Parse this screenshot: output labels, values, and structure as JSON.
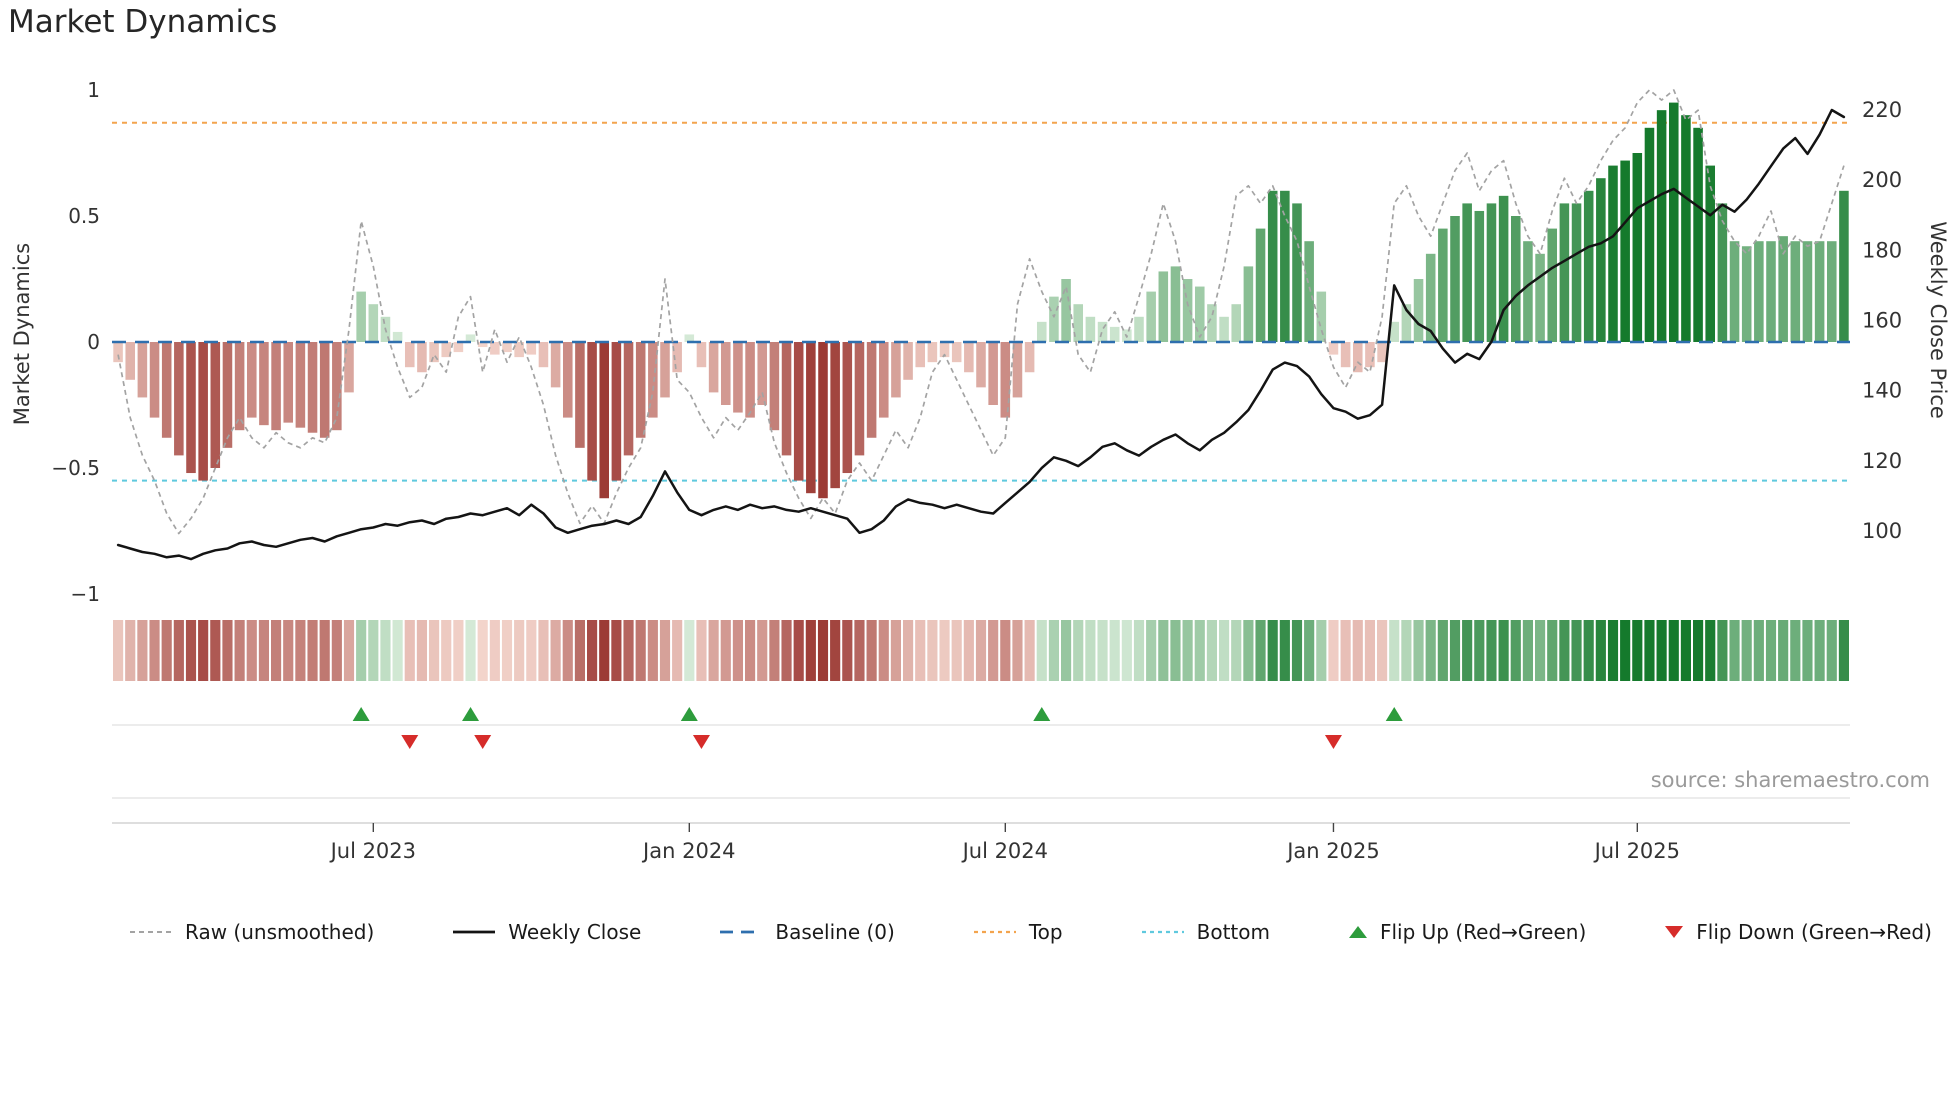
{
  "title": "Market Dynamics",
  "source": "source: sharemaestro.com",
  "axes": {
    "left_label": "Market Dynamics",
    "right_label": "Weekly Close Price"
  },
  "legend": {
    "items": [
      {
        "id": "raw",
        "label": "Raw (unsmoothed)"
      },
      {
        "id": "close",
        "label": "Weekly Close"
      },
      {
        "id": "baseline",
        "label": "Baseline (0)"
      },
      {
        "id": "top",
        "label": "Top"
      },
      {
        "id": "bottom",
        "label": "Bottom"
      },
      {
        "id": "flip-up",
        "label": "Flip Up (Red→Green)"
      },
      {
        "id": "flip-down",
        "label": "Flip Down (Green→Red)"
      }
    ]
  },
  "chart_data": {
    "type": "bar",
    "title": "Market Dynamics",
    "n_weeks": 143,
    "left_axis": {
      "label": "Market Dynamics",
      "ticks": [
        "1",
        "0.5",
        "0",
        "−0.5",
        "−1"
      ],
      "tick_values": [
        1,
        0.5,
        0,
        -0.5,
        -1
      ],
      "range": [
        -1.05,
        1.05
      ]
    },
    "right_axis": {
      "label": "Weekly Close Price",
      "ticks": [
        "220",
        "200",
        "180",
        "160",
        "140",
        "120",
        "100"
      ],
      "tick_values": [
        220,
        200,
        180,
        160,
        140,
        120,
        100
      ],
      "range": [
        88,
        228
      ]
    },
    "x_ticks": [
      {
        "label": "Jul 2023",
        "week": 21
      },
      {
        "label": "Jan 2024",
        "week": 47
      },
      {
        "label": "Jul 2024",
        "week": 73
      },
      {
        "label": "Jan 2025",
        "week": 100
      },
      {
        "label": "Jul 2025",
        "week": 125
      }
    ],
    "reference_lines": [
      {
        "name": "Baseline (0)",
        "value": 0,
        "color": "#2e6fae",
        "style": "dashed-long"
      },
      {
        "name": "Top",
        "value": 0.87,
        "color": "#f3a44e",
        "style": "dashed"
      },
      {
        "name": "Bottom",
        "value": -0.55,
        "color": "#5fc9de",
        "style": "dashed"
      }
    ],
    "flip_markers": {
      "up_weeks": [
        20,
        29,
        47,
        76,
        105
      ],
      "down_weeks": [
        24,
        30,
        48,
        100
      ]
    },
    "colors": {
      "raw": "#a3a3a3",
      "close": "#141414",
      "baseline": "#2e6fae",
      "top": "#f3a44e",
      "bottom": "#5fc9de",
      "flip_up": "#2d9c3c",
      "flip_down": "#d62c2a",
      "bar_pos_dark": "#157a2c",
      "bar_pos_light": "#dceedd",
      "bar_neg_dark": "#8e211c",
      "bar_neg_light": "#f6d9d0"
    },
    "series": [
      {
        "name": "Market Dynamics (smoothed bars + heatmap)",
        "type": "bar",
        "axis": "left",
        "values": [
          -0.08,
          -0.15,
          -0.22,
          -0.3,
          -0.38,
          -0.45,
          -0.52,
          -0.55,
          -0.5,
          -0.42,
          -0.35,
          -0.3,
          -0.33,
          -0.35,
          -0.32,
          -0.34,
          -0.36,
          -0.38,
          -0.35,
          -0.2,
          0.2,
          0.15,
          0.1,
          0.04,
          -0.1,
          -0.12,
          -0.08,
          -0.06,
          -0.04,
          0.03,
          -0.02,
          -0.05,
          -0.04,
          -0.06,
          -0.05,
          -0.1,
          -0.18,
          -0.3,
          -0.42,
          -0.55,
          -0.62,
          -0.55,
          -0.45,
          -0.38,
          -0.3,
          -0.22,
          -0.12,
          0.03,
          -0.1,
          -0.2,
          -0.25,
          -0.28,
          -0.3,
          -0.25,
          -0.35,
          -0.45,
          -0.55,
          -0.6,
          -0.62,
          -0.58,
          -0.52,
          -0.45,
          -0.38,
          -0.3,
          -0.22,
          -0.15,
          -0.1,
          -0.08,
          -0.06,
          -0.08,
          -0.12,
          -0.18,
          -0.25,
          -0.3,
          -0.22,
          -0.12,
          0.08,
          0.18,
          0.25,
          0.15,
          0.1,
          0.08,
          0.06,
          0.05,
          0.1,
          0.2,
          0.28,
          0.3,
          0.25,
          0.22,
          0.15,
          0.1,
          0.15,
          0.3,
          0.45,
          0.6,
          0.6,
          0.55,
          0.4,
          0.2,
          -0.05,
          -0.1,
          -0.12,
          -0.1,
          -0.08,
          0.08,
          0.15,
          0.25,
          0.35,
          0.45,
          0.5,
          0.55,
          0.52,
          0.55,
          0.58,
          0.5,
          0.4,
          0.35,
          0.45,
          0.55,
          0.55,
          0.6,
          0.65,
          0.7,
          0.72,
          0.75,
          0.85,
          0.92,
          0.95,
          0.9,
          0.85,
          0.7,
          0.55,
          0.4,
          0.38,
          0.4,
          0.4,
          0.42,
          0.4,
          0.4,
          0.4,
          0.4,
          0.6
        ]
      },
      {
        "name": "Raw (unsmoothed)",
        "type": "line",
        "axis": "left",
        "style": "dashed",
        "values": [
          -0.05,
          -0.3,
          -0.45,
          -0.55,
          -0.68,
          -0.76,
          -0.7,
          -0.62,
          -0.5,
          -0.38,
          -0.3,
          -0.38,
          -0.42,
          -0.36,
          -0.4,
          -0.42,
          -0.38,
          -0.4,
          -0.3,
          0.05,
          0.48,
          0.3,
          0.05,
          -0.1,
          -0.22,
          -0.18,
          -0.05,
          -0.12,
          0.1,
          0.18,
          -0.12,
          0.05,
          -0.08,
          0.02,
          -0.1,
          -0.25,
          -0.45,
          -0.6,
          -0.72,
          -0.65,
          -0.72,
          -0.6,
          -0.5,
          -0.42,
          -0.2,
          0.25,
          -0.15,
          -0.2,
          -0.3,
          -0.38,
          -0.3,
          -0.35,
          -0.28,
          -0.2,
          -0.4,
          -0.52,
          -0.62,
          -0.7,
          -0.62,
          -0.68,
          -0.55,
          -0.48,
          -0.55,
          -0.45,
          -0.35,
          -0.42,
          -0.3,
          -0.12,
          -0.05,
          -0.15,
          -0.25,
          -0.35,
          -0.45,
          -0.38,
          0.15,
          0.33,
          0.2,
          0.1,
          0.22,
          -0.05,
          -0.12,
          0.05,
          0.12,
          0.02,
          0.18,
          0.35,
          0.55,
          0.4,
          0.15,
          0.02,
          0.1,
          0.3,
          0.58,
          0.62,
          0.55,
          0.62,
          0.5,
          0.4,
          0.22,
          0.05,
          -0.1,
          -0.18,
          -0.08,
          -0.12,
          0.1,
          0.55,
          0.62,
          0.5,
          0.42,
          0.55,
          0.68,
          0.75,
          0.6,
          0.68,
          0.72,
          0.55,
          0.42,
          0.35,
          0.52,
          0.65,
          0.55,
          0.62,
          0.72,
          0.8,
          0.85,
          0.95,
          1.0,
          0.96,
          1.0,
          0.88,
          0.92,
          0.62,
          0.48,
          0.4,
          0.35,
          0.42,
          0.52,
          0.35,
          0.42,
          0.38,
          0.4,
          0.55,
          0.7
        ]
      },
      {
        "name": "Weekly Close",
        "type": "line",
        "axis": "right",
        "style": "solid",
        "values": [
          96,
          95,
          94,
          93.5,
          92.5,
          93,
          92,
          93.5,
          94.5,
          95,
          96.5,
          97,
          96,
          95.5,
          96.5,
          97.5,
          98,
          97,
          98.5,
          99.5,
          100.5,
          101,
          102,
          101.5,
          102.5,
          103,
          102,
          103.5,
          104,
          105,
          104.5,
          105.5,
          106.5,
          104.5,
          107.5,
          105,
          101,
          99.5,
          100.5,
          101.5,
          102,
          103,
          102,
          104,
          110,
          117,
          111,
          106,
          104.5,
          106,
          107,
          106,
          107.5,
          106.5,
          107,
          106,
          105.5,
          106.5,
          105.5,
          104.5,
          103.5,
          99.5,
          100.5,
          103,
          107,
          109,
          108,
          107.5,
          106.5,
          107.5,
          106.5,
          105.5,
          105,
          108,
          111,
          114,
          118,
          121,
          120,
          118.5,
          121,
          124,
          125,
          123,
          121.5,
          124,
          126,
          127.5,
          125,
          123,
          126,
          128,
          131,
          134.5,
          140,
          146,
          148,
          147,
          144,
          139,
          135,
          134,
          132,
          133,
          136,
          170,
          163,
          159,
          157,
          152,
          148,
          150.5,
          149,
          154,
          163,
          167,
          170,
          172.5,
          175,
          177,
          179,
          181,
          182,
          184,
          188,
          192,
          194,
          196,
          197.5,
          195,
          192.5,
          190,
          193,
          191,
          194.5,
          199,
          204,
          209,
          212,
          207.5,
          213,
          220,
          218
        ]
      }
    ]
  }
}
